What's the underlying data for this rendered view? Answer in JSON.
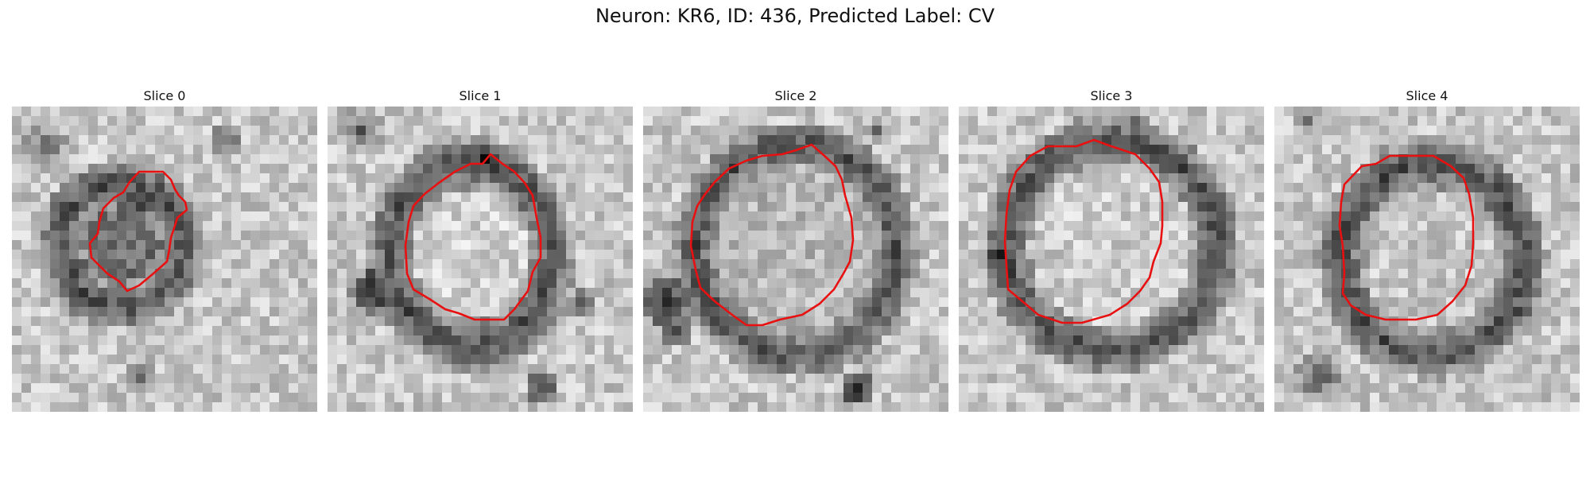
{
  "figure": {
    "title": "Neuron: KR6, ID: 436, Predicted Label: CV"
  },
  "panels": [
    {
      "title": "Slice 0"
    },
    {
      "title": "Slice 1"
    },
    {
      "title": "Slice 2"
    },
    {
      "title": "Slice 3"
    },
    {
      "title": "Slice 4"
    }
  ],
  "contour_color": "#e81010"
}
